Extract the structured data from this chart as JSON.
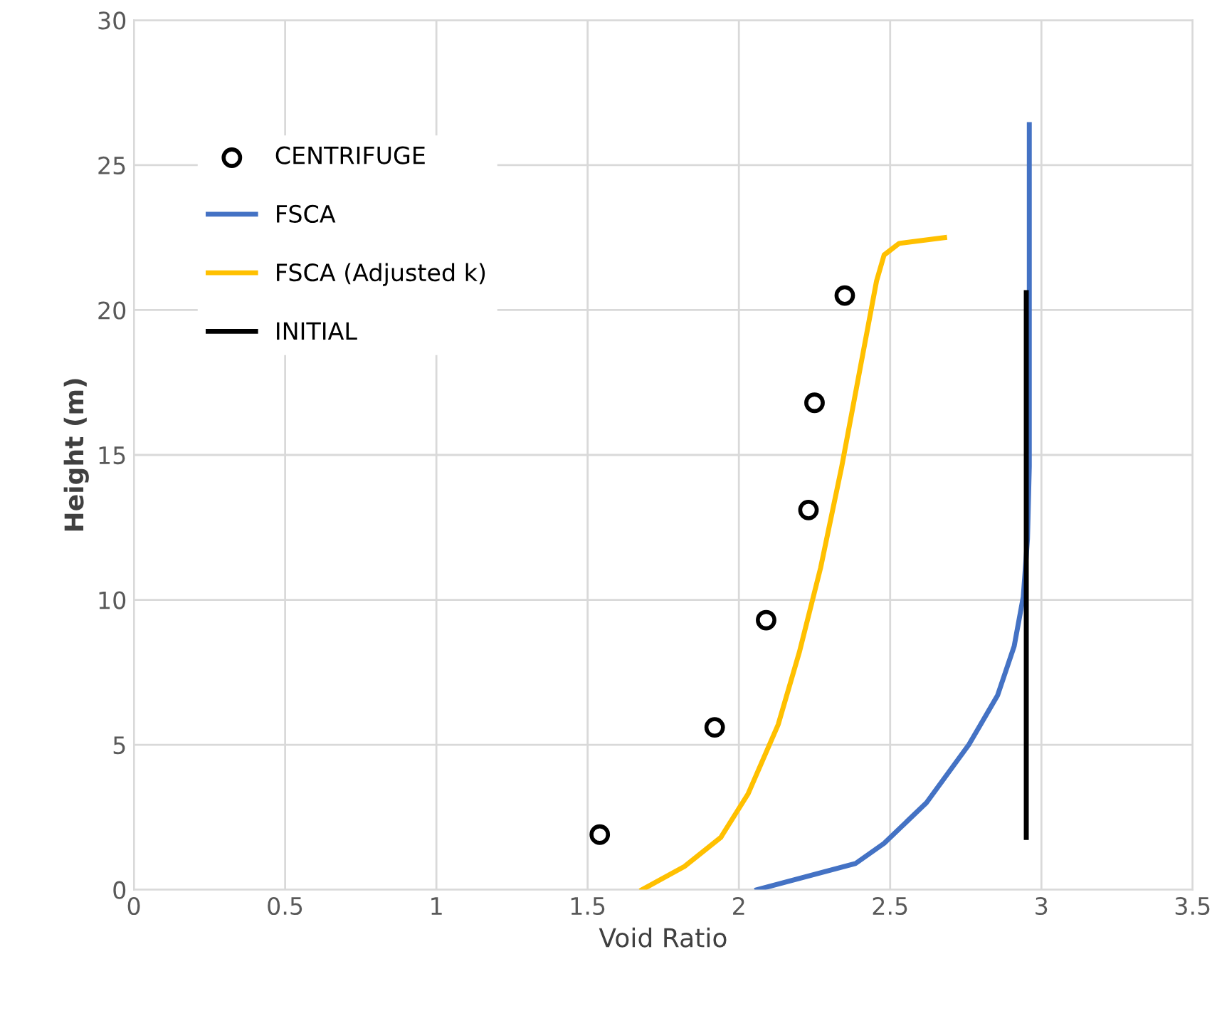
{
  "chart_data": {
    "type": "line",
    "xlabel": "Void Ratio",
    "ylabel": "Height (m)",
    "xlim": [
      0,
      3.5
    ],
    "xticks": [
      0,
      0.5,
      1,
      1.5,
      2,
      2.5,
      3,
      3.5
    ],
    "ylim": [
      0,
      30
    ],
    "yticks": [
      0,
      5,
      10,
      15,
      20,
      25,
      30
    ],
    "grid": true,
    "legend": "top left",
    "series": [
      {
        "name": "CENTRIFUGE",
        "type": "scatter",
        "marker": "circle",
        "color": "#000000",
        "x": [
          1.54,
          1.92,
          2.09,
          2.23,
          2.25,
          2.35
        ],
        "values": [
          1.9,
          5.6,
          9.3,
          13.1,
          16.8,
          20.5
        ]
      },
      {
        "name": "FSCA",
        "color": "#4472c4",
        "x": [
          2.06,
          2.385,
          2.48,
          2.62,
          2.76,
          2.855,
          2.91,
          2.94,
          2.954,
          2.96,
          2.96
        ],
        "values": [
          0,
          0.9,
          1.6,
          3.0,
          5.0,
          6.7,
          8.4,
          10.1,
          12.1,
          14.6,
          26.4
        ]
      },
      {
        "name": "FSCA (Adjusted k)",
        "color": "#ffc000",
        "x": [
          1.68,
          1.82,
          1.94,
          2.03,
          2.13,
          2.2,
          2.27,
          2.34,
          2.41,
          2.455,
          2.48,
          2.53,
          2.68
        ],
        "values": [
          0,
          0.8,
          1.8,
          3.3,
          5.7,
          8.2,
          11.1,
          14.6,
          18.5,
          21.0,
          21.9,
          22.3,
          22.5
        ]
      },
      {
        "name": "INITIAL",
        "color": "#000000",
        "x": [
          2.95,
          2.95
        ],
        "values": [
          1.8,
          20.6
        ]
      }
    ]
  }
}
